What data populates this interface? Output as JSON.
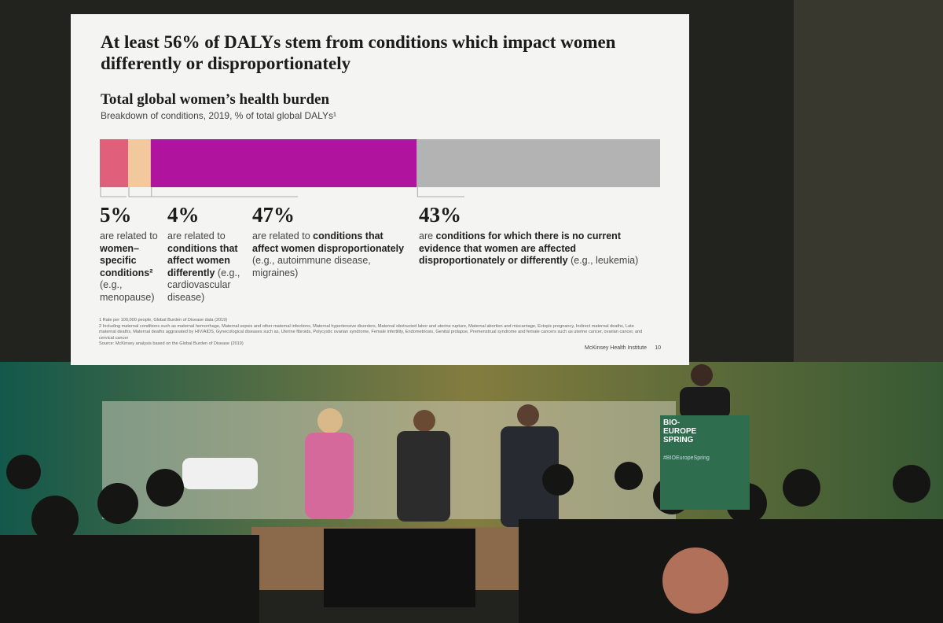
{
  "slide": {
    "title": "At least 56% of DALYs stem from conditions which impact women differently or disproportionately",
    "chart_title": "Total global women’s health burden",
    "subtitle": "Breakdown of conditions, 2019, % of total global DALYs¹",
    "segments": [
      {
        "value": 5,
        "label": "5%",
        "color": "#e0607c",
        "description": [
          {
            "text": "are related to ",
            "bold": false
          },
          {
            "text": "women–specific conditions²",
            "bold": true
          },
          {
            "text": " (e.g., menopause)",
            "bold": false
          }
        ]
      },
      {
        "value": 4,
        "label": "4%",
        "color": "#f2c99c",
        "description": [
          {
            "text": "are related to ",
            "bold": false
          },
          {
            "text": "conditions that affect women differently",
            "bold": true
          },
          {
            "text": " (e.g., cardiovascular disease)",
            "bold": false
          }
        ]
      },
      {
        "value": 47,
        "label": "47%",
        "color": "#b0149e",
        "description": [
          {
            "text": "are related to ",
            "bold": false
          },
          {
            "text": "conditions that affect women disproportionately",
            "bold": true
          },
          {
            "text": " (e.g., autoimmune disease, migraines)",
            "bold": false
          }
        ]
      },
      {
        "value": 43,
        "label": "43%",
        "color": "#b3b3b3",
        "description": [
          {
            "text": "are ",
            "bold": false
          },
          {
            "text": "conditions for which there is no current evidence that women are affected disproportionately or differently",
            "bold": true
          },
          {
            "text": " (e.g., leukemia)",
            "bold": false
          }
        ]
      }
    ],
    "footnotes": [
      "1  Rate per 100,000 people, Global Burden of Disease data (2019)",
      "2  Including maternal conditions such as maternal hemorrhage, Maternal sepsis and other maternal infections, Maternal hypertensive disorders, Maternal obstructed labor and uterine rupture, Maternal abortion and miscarriage, Ectopic pregnancy, Indirect maternal deaths, Late maternal deaths, Maternal deaths aggravated by HIV/AIDS, Gynecological diseases such as, Uterine fibroids, Polycystic ovarian syndrome, Female infertility, Endometriosis, Genital prolapse, Premenstrual syndrome and female cancers such as uterine cancer, ovarian cancer, and cervical cancer",
      "Source: McKinsey analysis based on the Global Burden of Disease (2019)"
    ],
    "brand": "McKinsey Health Institute",
    "page_number": "10"
  },
  "podium": {
    "title": "BIO-EUROPE SPRING",
    "hashtag": "#BIOEuropeSpring"
  }
}
